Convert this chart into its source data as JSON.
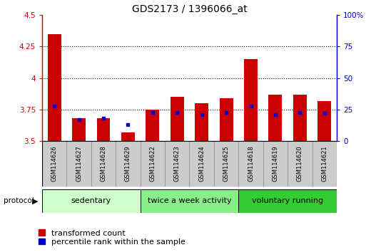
{
  "title": "GDS2173 / 1396066_at",
  "categories": [
    "GSM114626",
    "GSM114627",
    "GSM114628",
    "GSM114629",
    "GSM114622",
    "GSM114623",
    "GSM114624",
    "GSM114625",
    "GSM114618",
    "GSM114619",
    "GSM114620",
    "GSM114621"
  ],
  "red_values": [
    4.35,
    3.68,
    3.68,
    3.57,
    3.75,
    3.85,
    3.8,
    3.84,
    4.15,
    3.87,
    3.87,
    3.82
  ],
  "blue_values": [
    3.78,
    3.67,
    3.68,
    3.63,
    3.73,
    3.73,
    3.71,
    3.73,
    3.78,
    3.71,
    3.73,
    3.72
  ],
  "ymin": 3.5,
  "ymax": 4.5,
  "yticks": [
    3.5,
    3.75,
    4.0,
    4.25,
    4.5
  ],
  "ytick_labels": [
    "3.5",
    "3.75",
    "4",
    "4.25",
    "4.5"
  ],
  "right_yticks": [
    0,
    25,
    50,
    75,
    100
  ],
  "right_ytick_labels": [
    "0",
    "25",
    "50",
    "75",
    "100%"
  ],
  "groups": [
    {
      "label": "sedentary",
      "start": 0,
      "end": 4,
      "color": "#ccffcc"
    },
    {
      "label": "twice a week activity",
      "start": 4,
      "end": 8,
      "color": "#88ee88"
    },
    {
      "label": "voluntary running",
      "start": 8,
      "end": 12,
      "color": "#33cc33"
    }
  ],
  "protocol_label": "protocol",
  "red_color": "#cc0000",
  "blue_color": "#0000cc",
  "title_fontsize": 10,
  "tick_fontsize": 7.5,
  "legend_fontsize": 8,
  "group_label_fontsize": 8,
  "grey_cell_color": "#cccccc",
  "grey_cell_edge": "#888888"
}
